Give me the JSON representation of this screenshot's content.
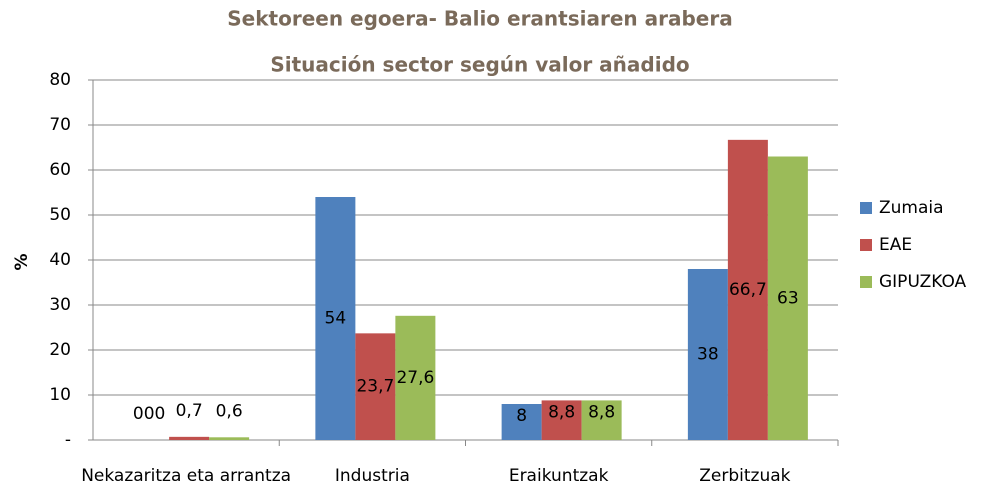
{
  "chart_data": {
    "type": "bar",
    "title": "Sektoreen egoera- Balio erantsiaren arabera",
    "subtitle": "Situación sector según valor añadido",
    "y_label": "%",
    "categories": [
      "Nekazaritza eta arrantza",
      "Industria",
      "Eraikuntzak",
      "Zerbitzuak"
    ],
    "series": [
      {
        "name": "Zumaia",
        "color": "#4f81bd",
        "values": [
          0,
          54,
          8,
          38
        ],
        "value_labels": [
          "000",
          "54",
          "8",
          "38"
        ]
      },
      {
        "name": "EAE",
        "color": "#c0504d",
        "values": [
          0.7,
          23.7,
          8.8,
          66.7
        ],
        "value_labels": [
          "0,7",
          "23,7",
          "8,8",
          "66,7"
        ]
      },
      {
        "name": "GIPUZKOA",
        "color": "#9bbb59",
        "values": [
          0.6,
          27.6,
          8.8,
          63
        ],
        "value_labels": [
          "0,6",
          "27,6",
          "8,8",
          "63"
        ]
      }
    ],
    "ylim": [
      0,
      80
    ],
    "yticks": [
      {
        "value": 0,
        "label": "-"
      },
      10,
      20,
      30,
      40,
      50,
      60,
      70,
      80
    ],
    "grid": true,
    "legend": "right"
  }
}
